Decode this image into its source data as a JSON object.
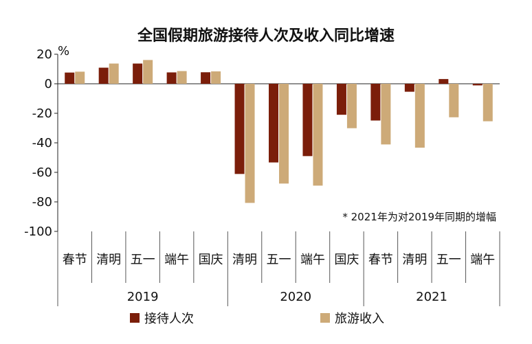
{
  "chart_data": {
    "type": "bar",
    "title": "全国假期旅游接待人次及收入同比增速",
    "ylabel": "%",
    "ylim": [
      -100,
      20
    ],
    "yticks": [
      20,
      0,
      -20,
      -40,
      -60,
      -80,
      -100
    ],
    "grid": false,
    "legend": "bottom",
    "note": "* 2021年为对2019年同期的增幅",
    "categories": [
      "春节",
      "清明",
      "五一",
      "端午",
      "国庆",
      "清明",
      "五一",
      "端午",
      "国庆",
      "春节",
      "清明",
      "五一",
      "端午"
    ],
    "groups": [
      {
        "label": "2019",
        "count": 5
      },
      {
        "label": "2020",
        "count": 4
      },
      {
        "label": "2021",
        "count": 4
      }
    ],
    "series": [
      {
        "name": "接待人次",
        "color": "#7B1E0A",
        "values": [
          7.6,
          10.9,
          13.7,
          7.7,
          7.8,
          -61.1,
          -53.3,
          -49.0,
          -21.0,
          -24.9,
          -5.4,
          3.2,
          -1.1
        ]
      },
      {
        "name": "旅游收入",
        "color": "#CDAA78",
        "values": [
          8.2,
          13.7,
          16.1,
          8.6,
          8.4,
          -80.7,
          -67.6,
          -69.0,
          -30.1,
          -41.1,
          -43.3,
          -22.7,
          -25.4
        ]
      }
    ]
  }
}
